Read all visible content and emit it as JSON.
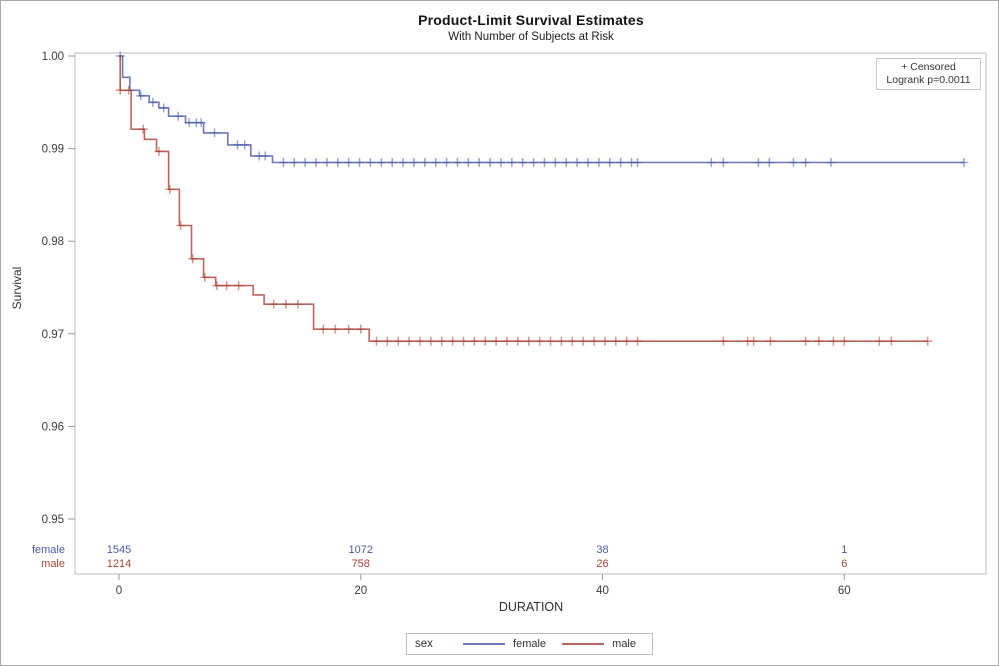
{
  "chart_data": {
    "type": "line",
    "subtype": "kaplan-meier-step",
    "title": "Product-Limit Survival Estimates",
    "subtitle": "With Number of Subjects at Risk",
    "x_axis": {
      "label": "DURATION",
      "ticks": [
        0,
        20,
        40,
        60
      ],
      "range": [
        0,
        71.7
      ],
      "grid": false
    },
    "y_axis": {
      "label": "Survival",
      "ticks": [
        0.95,
        0.96,
        0.97,
        0.98,
        0.99,
        1.0
      ],
      "range": [
        0.95,
        1.0
      ],
      "grid": false
    },
    "annotations": {
      "censored": "+ Censored",
      "logrank": "Logrank p=0.0011"
    },
    "legend_title": "sex",
    "series": [
      {
        "name": "female",
        "color": "#4a5ca6",
        "end_time": 69.9,
        "steps": [
          [
            0,
            1.0
          ],
          [
            0.3,
            0.9977
          ],
          [
            0.9,
            0.9963
          ],
          [
            1.7,
            0.9957
          ],
          [
            2.5,
            0.995
          ],
          [
            3.3,
            0.9944
          ],
          [
            4.1,
            0.9935
          ],
          [
            5.5,
            0.9928
          ],
          [
            7.0,
            0.9917
          ],
          [
            9.0,
            0.9904
          ],
          [
            10.9,
            0.9892
          ],
          [
            12.7,
            0.9885
          ]
        ],
        "censor_times": [
          0.1,
          1.8,
          2.8,
          3.7,
          4.9,
          5.8,
          6.4,
          6.8,
          7.9,
          9.8,
          10.4,
          11.6,
          12.1,
          13.6,
          14.5,
          15.4,
          16.3,
          17.2,
          18.1,
          19.0,
          19.9,
          20.8,
          21.7,
          22.6,
          23.5,
          24.4,
          25.3,
          26.2,
          27.1,
          28.0,
          28.9,
          29.8,
          30.7,
          31.6,
          32.5,
          33.4,
          34.3,
          35.2,
          36.1,
          37.0,
          37.9,
          38.8,
          39.7,
          40.6,
          41.5,
          42.4,
          42.9,
          49.0,
          50.0,
          52.9,
          53.8,
          55.8,
          56.8,
          58.9,
          69.9
        ]
      },
      {
        "name": "male",
        "color": "#ad4339",
        "end_time": 66.9,
        "steps": [
          [
            0,
            1.0
          ],
          [
            0.1,
            0.9963
          ],
          [
            1.0,
            0.9921
          ],
          [
            2.1,
            0.991
          ],
          [
            3.1,
            0.9897
          ],
          [
            4.1,
            0.9856
          ],
          [
            5.0,
            0.9817
          ],
          [
            6.0,
            0.9781
          ],
          [
            7.0,
            0.9761
          ],
          [
            8.0,
            0.9752
          ],
          [
            11.1,
            0.9742
          ],
          [
            12.0,
            0.9732
          ],
          [
            16.1,
            0.9705
          ],
          [
            20.7,
            0.9692
          ]
        ],
        "censor_times": [
          0.1,
          0.8,
          2.0,
          3.3,
          4.2,
          5.1,
          6.1,
          7.1,
          8.1,
          8.9,
          9.9,
          12.8,
          13.8,
          14.8,
          16.9,
          17.9,
          19.0,
          20.0,
          21.3,
          22.2,
          23.1,
          24.0,
          24.9,
          25.8,
          26.7,
          27.6,
          28.5,
          29.4,
          30.3,
          31.2,
          32.1,
          33.0,
          33.9,
          34.8,
          35.7,
          36.6,
          37.5,
          38.4,
          39.3,
          40.2,
          41.1,
          42.0,
          42.9,
          50.0,
          52.0,
          52.5,
          53.9,
          56.8,
          57.9,
          59.1,
          60.0,
          62.9,
          63.9,
          66.9
        ]
      }
    ]
  },
  "at_risk": {
    "times": [
      0,
      20,
      40,
      60
    ],
    "rows": [
      {
        "label": "female",
        "color": "#4a5ca6",
        "counts": [
          1545,
          1072,
          38,
          1
        ]
      },
      {
        "label": "male",
        "color": "#ad4339",
        "counts": [
          1214,
          758,
          26,
          6
        ]
      }
    ]
  },
  "bottom_legend": {
    "title": "sex",
    "entries": [
      {
        "label": "female",
        "color": "#4a5ca6"
      },
      {
        "label": "male",
        "color": "#ad4339"
      }
    ]
  }
}
